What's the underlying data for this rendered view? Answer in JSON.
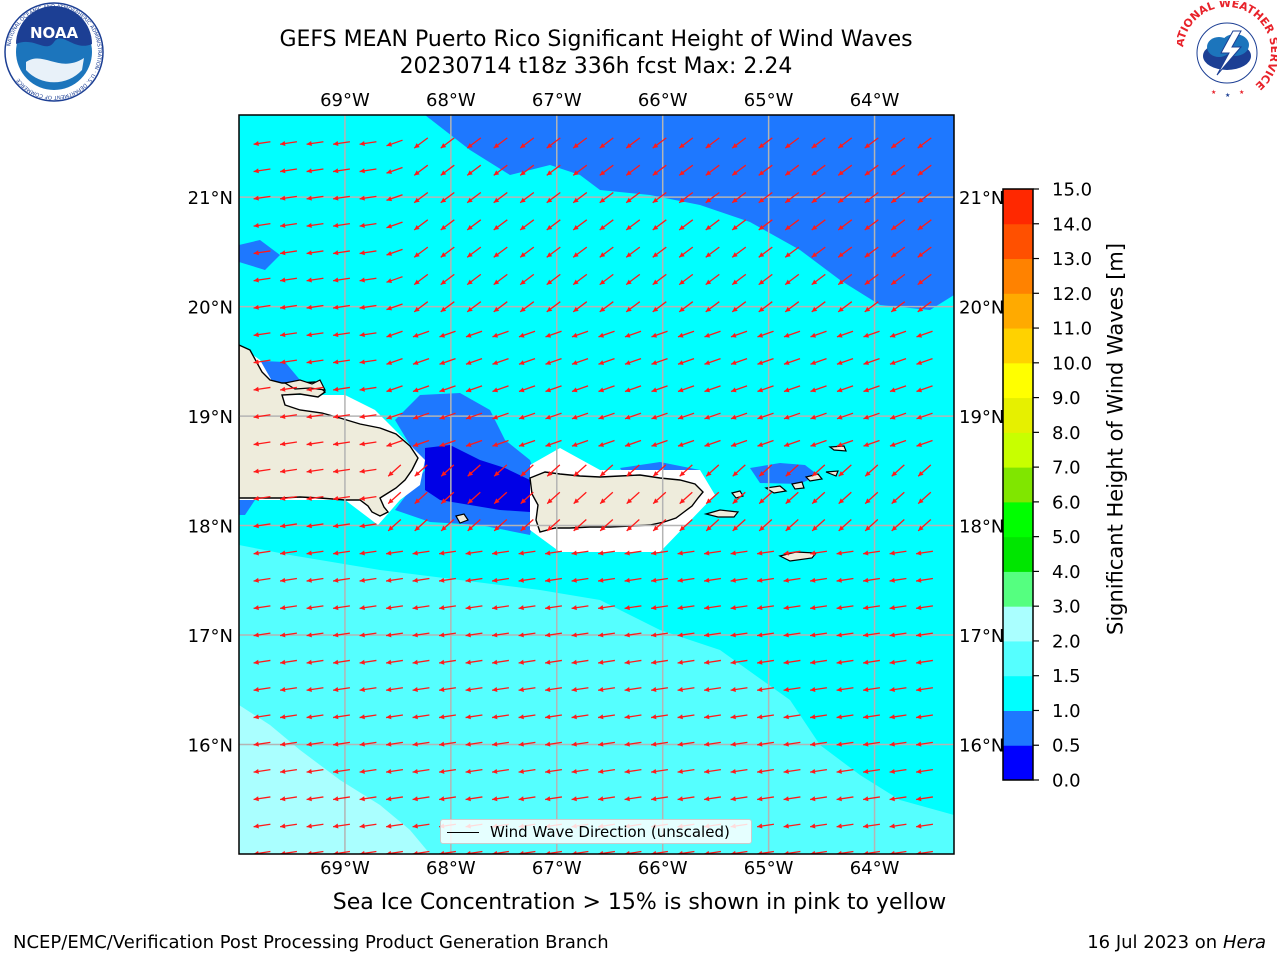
{
  "header": {
    "title_line1": "GEFS MEAN Puerto Rico Significant Height of Wind Waves",
    "title_line2": "20230714 t18z 336h fcst   Max: 2.24"
  },
  "logos": {
    "noaa_text": "NOAA",
    "noaa_ring_text": "NATIONAL OCEANIC AND ATMOSPHERIC ADMINISTRATION · U.S. DEPARTMENT OF COMMERCE",
    "nws_ring_text": "NATIONAL WEATHER SERVICE"
  },
  "map": {
    "lon_labels": [
      "69°W",
      "68°W",
      "67°W",
      "66°W",
      "65°W",
      "64°W"
    ],
    "lon_values": [
      -69,
      -68,
      -67,
      -66,
      -65,
      -64
    ],
    "lat_labels": [
      "21°N",
      "20°N",
      "19°N",
      "18°N",
      "17°N",
      "16°N"
    ],
    "lat_values": [
      21,
      20,
      19,
      18,
      17,
      16
    ],
    "extent": {
      "lon_min": -70,
      "lon_max": -63.25,
      "lat_min": 15,
      "lat_max": 21.75
    },
    "legend_label": "Wind Wave Direction (unscaled)",
    "wave_direction": "from east (arrows point west-southwest)",
    "colors": {
      "ocean_main": "#00ffff",
      "ocean_light": "#55ffff",
      "ocean_lighter": "#aaffff",
      "band_0_5_1_0": "#1e78ff",
      "band_0_0_5": "#0000e6",
      "land": "#eeecdc",
      "arrow": "#ff1a1a"
    }
  },
  "colorbar": {
    "title": "Significant Height of Wind Waves [m]",
    "ticks": [
      "0.0",
      "0.5",
      "1.0",
      "1.5",
      "2.0",
      "3.0",
      "4.0",
      "5.0",
      "6.0",
      "7.0",
      "8.0",
      "9.0",
      "10.0",
      "11.0",
      "12.0",
      "13.0",
      "14.0",
      "15.0"
    ],
    "colors": [
      "#0000ff",
      "#1e78ff",
      "#00ffff",
      "#55ffff",
      "#aaffff",
      "#55ff80",
      "#00e600",
      "#00ff00",
      "#80e600",
      "#c8ff00",
      "#e6f000",
      "#ffff00",
      "#ffd200",
      "#ffaa00",
      "#ff8200",
      "#ff5000",
      "#ff2800"
    ]
  },
  "caption": "Sea Ice Concentration > 15% is shown in pink to yellow",
  "footer": {
    "left": "NCEP/EMC/Verification Post Processing Product Generation Branch",
    "right_prefix": "16 Jul 2023 on ",
    "right_host": "Hera"
  }
}
